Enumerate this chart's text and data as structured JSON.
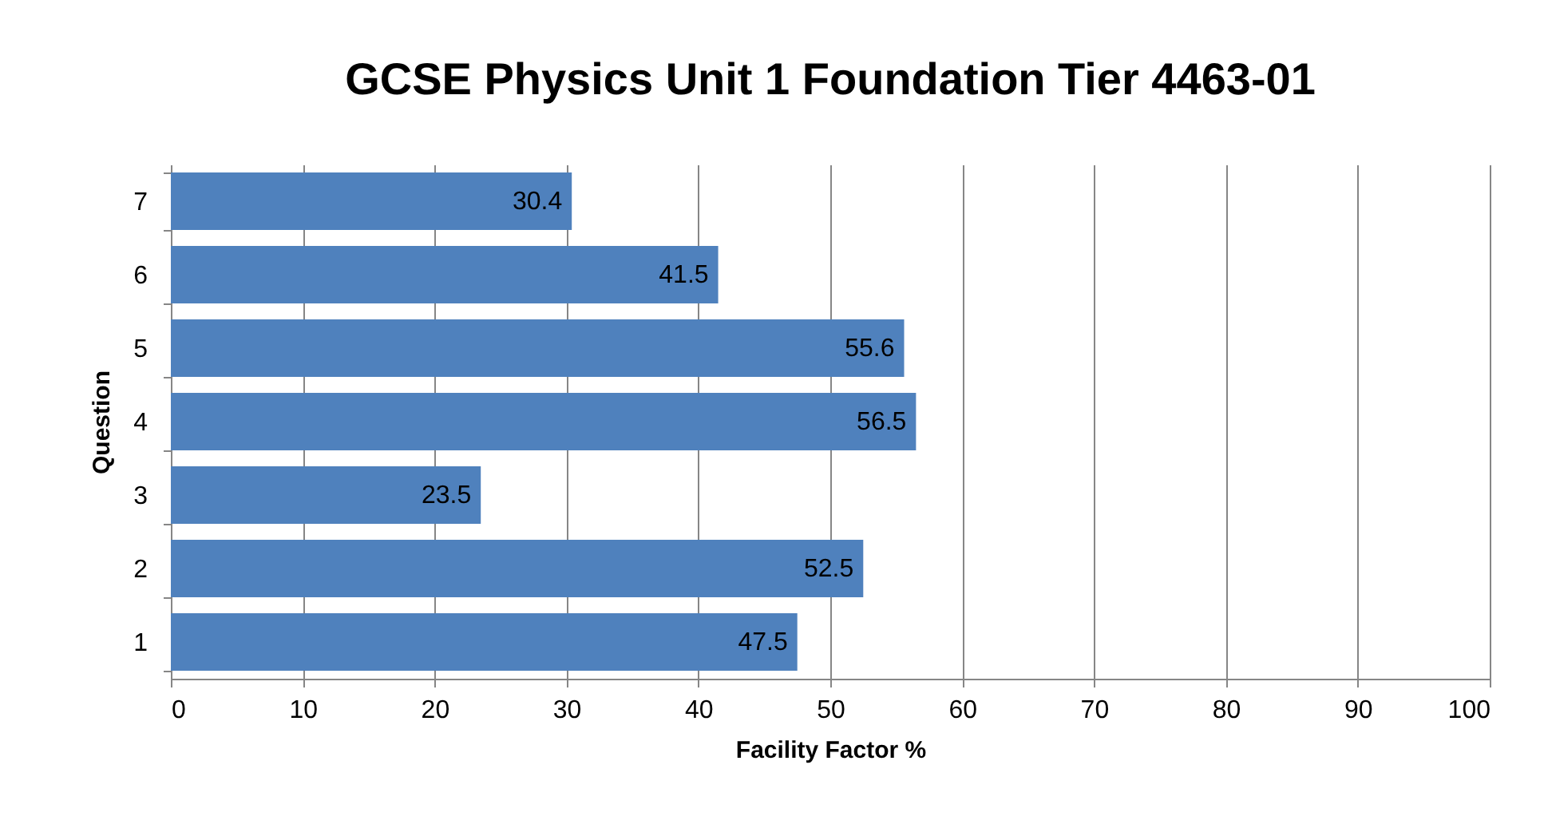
{
  "chart_data": {
    "type": "bar",
    "orientation": "horizontal",
    "title": "GCSE Physics Unit 1 Foundation Tier 4463-01",
    "xlabel": "Facility Factor %",
    "ylabel": "Question",
    "categories": [
      "7",
      "6",
      "5",
      "4",
      "3",
      "2",
      "1"
    ],
    "values": [
      30.4,
      41.5,
      55.6,
      56.5,
      23.5,
      52.5,
      47.5
    ],
    "color": "#4f81bd",
    "xlim": [
      0,
      100
    ],
    "xticks": [
      0,
      10,
      20,
      30,
      40,
      50,
      60,
      70,
      80,
      90,
      100
    ],
    "grid": "x",
    "data_labels": true
  }
}
